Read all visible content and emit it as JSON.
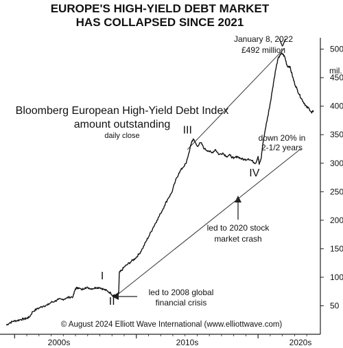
{
  "chart_data": {
    "type": "line",
    "title": [
      "EUROPE'S HIGH-YIELD DEBT MARKET",
      "HAS COLLAPSED SINCE 2021"
    ],
    "series_label": [
      "Bloomberg European High-Yield Debt Index",
      "amount outstanding",
      "daily close"
    ],
    "y_unit_label": "mil.",
    "y_axis": {
      "min": 0,
      "max": 520,
      "ticks": [
        50,
        100,
        150,
        200,
        250,
        300,
        350,
        400,
        450,
        500
      ],
      "position": "right"
    },
    "x_axis": {
      "min": 1999.25,
      "max": 2024.95,
      "decade_labels": [
        "2000s",
        "2010s",
        "2020s"
      ]
    },
    "points": [
      [
        1999.3,
        16
      ],
      [
        1999.6,
        20
      ],
      [
        1999.9,
        23
      ],
      [
        2000.2,
        24
      ],
      [
        2000.5,
        26
      ],
      [
        2000.8,
        27
      ],
      [
        2001.0,
        28
      ],
      [
        2001.2,
        30
      ],
      [
        2001.5,
        40
      ],
      [
        2001.8,
        44
      ],
      [
        2002.1,
        47
      ],
      [
        2002.4,
        50
      ],
      [
        2002.7,
        51
      ],
      [
        2003.0,
        56
      ],
      [
        2003.3,
        58
      ],
      [
        2003.6,
        61
      ],
      [
        2003.9,
        61
      ],
      [
        2004.2,
        63
      ],
      [
        2004.5,
        65
      ],
      [
        2004.8,
        66
      ],
      [
        2005.0,
        80
      ],
      [
        2005.2,
        82
      ],
      [
        2005.5,
        78
      ],
      [
        2005.8,
        82
      ],
      [
        2006.1,
        81
      ],
      [
        2006.4,
        80
      ],
      [
        2006.7,
        82
      ],
      [
        2007.0,
        82
      ],
      [
        2007.3,
        79
      ],
      [
        2007.6,
        76
      ],
      [
        2007.9,
        72
      ],
      [
        2008.1,
        68
      ],
      [
        2008.2,
        68
      ],
      [
        2008.4,
        69
      ],
      [
        2008.55,
        72
      ],
      [
        2008.6,
        108
      ],
      [
        2008.8,
        112
      ],
      [
        2009.0,
        118
      ],
      [
        2009.3,
        123
      ],
      [
        2009.6,
        128
      ],
      [
        2009.9,
        133
      ],
      [
        2010.2,
        140
      ],
      [
        2010.5,
        150
      ],
      [
        2010.8,
        163
      ],
      [
        2011.1,
        175
      ],
      [
        2011.4,
        188
      ],
      [
        2011.7,
        200
      ],
      [
        2012.0,
        212
      ],
      [
        2012.3,
        225
      ],
      [
        2012.6,
        238
      ],
      [
        2012.9,
        248
      ],
      [
        2013.2,
        268
      ],
      [
        2013.5,
        283
      ],
      [
        2013.8,
        292
      ],
      [
        2014.1,
        300
      ],
      [
        2014.4,
        325
      ],
      [
        2014.55,
        338
      ],
      [
        2014.7,
        342
      ],
      [
        2015.0,
        330
      ],
      [
        2015.3,
        336
      ],
      [
        2015.6,
        325
      ],
      [
        2015.9,
        322
      ],
      [
        2016.2,
        318
      ],
      [
        2016.5,
        324
      ],
      [
        2016.8,
        315
      ],
      [
        2017.1,
        318
      ],
      [
        2017.4,
        312
      ],
      [
        2017.7,
        314
      ],
      [
        2018.0,
        308
      ],
      [
        2018.3,
        312
      ],
      [
        2018.6,
        308
      ],
      [
        2018.9,
        306
      ],
      [
        2019.2,
        308
      ],
      [
        2019.5,
        304
      ],
      [
        2019.8,
        300
      ],
      [
        2020.0,
        312
      ],
      [
        2020.1,
        298
      ],
      [
        2020.25,
        308
      ],
      [
        2020.4,
        335
      ],
      [
        2020.6,
        360
      ],
      [
        2020.8,
        382
      ],
      [
        2021.0,
        405
      ],
      [
        2021.2,
        432
      ],
      [
        2021.4,
        458
      ],
      [
        2021.6,
        480
      ],
      [
        2021.8,
        490
      ],
      [
        2022.02,
        492
      ],
      [
        2022.2,
        486
      ],
      [
        2022.4,
        470
      ],
      [
        2022.6,
        470
      ],
      [
        2022.8,
        455
      ],
      [
        2023.0,
        440
      ],
      [
        2023.2,
        430
      ],
      [
        2023.4,
        420
      ],
      [
        2023.6,
        412
      ],
      [
        2023.8,
        405
      ],
      [
        2024.0,
        398
      ],
      [
        2024.2,
        396
      ],
      [
        2024.4,
        388
      ],
      [
        2024.55,
        392
      ]
    ],
    "channel_lines": [
      {
        "from": [
          2014.2,
          324
        ],
        "to": [
          2022.2,
          502
        ]
      },
      {
        "from": [
          2008.3,
          67
        ],
        "to": [
          2023.5,
          325
        ]
      }
    ],
    "wave_labels": [
      {
        "label": "I",
        "x": 2007.2,
        "y": 96
      },
      {
        "label": "II",
        "x": 2008.0,
        "y": 52
      },
      {
        "label": "III",
        "x": 2014.2,
        "y": 352
      },
      {
        "label": "IV",
        "x": 2019.7,
        "y": 277
      },
      {
        "label": "V",
        "x": 2022.0,
        "y": 505
      }
    ],
    "annotations": {
      "peak_date": "January 8, 2022",
      "peak_value": "£492 million",
      "decline": [
        "down 20% in",
        "2-1/2 years"
      ],
      "gfc": [
        "led to 2008 global",
        "financial crisis"
      ],
      "covid": [
        "led to 2020 stock",
        "market crash"
      ],
      "copyright": "© August 2024 Elliott Wave International (www.elliottwave.com)"
    }
  }
}
